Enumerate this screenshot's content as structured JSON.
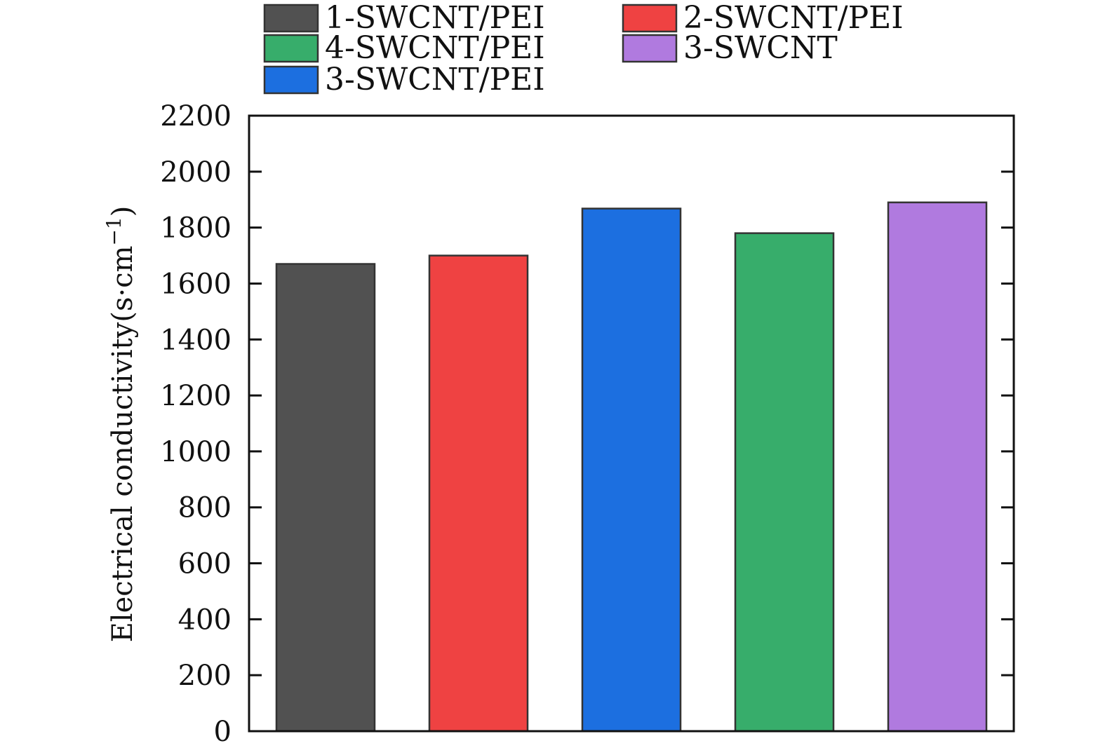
{
  "chart_data": {
    "type": "bar",
    "title": "",
    "xlabel": "",
    "ylabel": "Electrical conductivity(s·cm",
    "ylabel_sup": "−1",
    "ylabel_close": ")",
    "ylim": [
      0,
      2200
    ],
    "yticks": [
      0,
      200,
      400,
      600,
      800,
      1000,
      1200,
      1400,
      1600,
      1800,
      2000,
      2200
    ],
    "grid": false,
    "legend_position": "top",
    "series": [
      {
        "name": "1-SWCNT/PEI",
        "value": 1670,
        "color": "#515151"
      },
      {
        "name": "2-SWCNT/PEI",
        "value": 1700,
        "color": "#ef4242"
      },
      {
        "name": "3-SWCNT/PEI",
        "value": 1868,
        "color": "#1c6fe0"
      },
      {
        "name": "4-SWCNT/PEI",
        "value": 1780,
        "color": "#37ad6b"
      },
      {
        "name": "3-SWCNT",
        "value": 1890,
        "color": "#b07adf"
      }
    ],
    "legend_order": [
      0,
      1,
      3,
      4,
      2
    ]
  }
}
